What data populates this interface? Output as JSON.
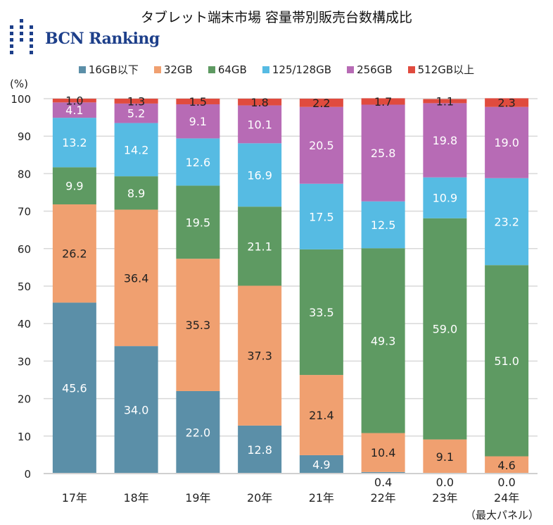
{
  "title": "タブレット端末市場  容量帯別販売台数構成比",
  "logo_text": "BCN Ranking",
  "note": "（最大パネル）",
  "chart_data": {
    "type": "bar",
    "stacked": true,
    "title": "タブレット端末市場  容量帯別販売台数構成比",
    "ylabel": "(%)",
    "ylim": [
      0,
      100
    ],
    "yticks": [
      0,
      10,
      20,
      30,
      40,
      50,
      60,
      70,
      80,
      90,
      100
    ],
    "grid": true,
    "legend_position": "top",
    "categories": [
      "17年",
      "18年",
      "19年",
      "20年",
      "21年",
      "22年",
      "23年",
      "24年"
    ],
    "series": [
      {
        "name": "16GB以下",
        "color": "#5B8FA8",
        "label_color": "#ffffff",
        "values": [
          45.6,
          34.0,
          22.0,
          12.8,
          4.9,
          0.4,
          0.0,
          0.0
        ]
      },
      {
        "name": "32GB",
        "color": "#F0A070",
        "label_color": "#222222",
        "values": [
          26.2,
          36.4,
          35.3,
          37.3,
          21.4,
          10.4,
          9.1,
          4.6
        ]
      },
      {
        "name": "64GB",
        "color": "#5E9A62",
        "label_color": "#ffffff",
        "values": [
          9.9,
          8.9,
          19.5,
          21.1,
          33.5,
          49.3,
          59.0,
          51.0
        ]
      },
      {
        "name": "125/128GB",
        "color": "#56BBE3",
        "label_color": "#ffffff",
        "values": [
          13.2,
          14.2,
          12.6,
          16.9,
          17.5,
          12.5,
          10.9,
          23.2
        ]
      },
      {
        "name": "256GB",
        "color": "#B76BB5",
        "label_color": "#ffffff",
        "values": [
          4.1,
          5.2,
          9.1,
          10.1,
          20.5,
          25.8,
          19.8,
          19.0
        ]
      },
      {
        "name": "512GB以上",
        "color": "#E04B3E",
        "label_color": "#222222",
        "values": [
          1.0,
          1.3,
          1.5,
          1.8,
          2.2,
          1.7,
          1.1,
          2.3
        ]
      }
    ]
  }
}
